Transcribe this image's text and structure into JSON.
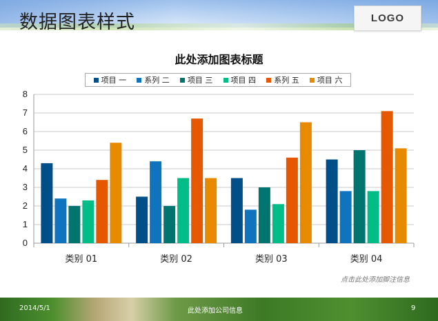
{
  "header": {
    "title": "数据图表样式",
    "logo": "LOGO"
  },
  "footnote": "点击此处添加脚注信息",
  "footer": {
    "date": "2014/5/1",
    "info": "此处添加公司信息",
    "page": "9"
  },
  "colors": [
    "#004f88",
    "#0f73bd",
    "#00746e",
    "#00bd88",
    "#e55800",
    "#e88a00"
  ],
  "chart_data": {
    "type": "bar",
    "title": "此处添加图表标题",
    "categories": [
      "类别 01",
      "类别 02",
      "类别 03",
      "类别 04"
    ],
    "ylim": [
      0,
      8
    ],
    "yticks": [
      0,
      1,
      2,
      3,
      4,
      5,
      6,
      7,
      8
    ],
    "grid": true,
    "legend_position": "top",
    "series": [
      {
        "name": "项目 一",
        "values": [
          4.3,
          2.5,
          3.5,
          4.5
        ]
      },
      {
        "name": "系列 二",
        "values": [
          2.4,
          4.4,
          1.8,
          2.8
        ]
      },
      {
        "name": "项目 三",
        "values": [
          2.0,
          2.0,
          3.0,
          5.0
        ]
      },
      {
        "name": "项目 四",
        "values": [
          2.3,
          3.5,
          2.1,
          2.8
        ]
      },
      {
        "name": "系列 五",
        "values": [
          3.4,
          6.7,
          4.6,
          7.1
        ]
      },
      {
        "name": "项目 六",
        "values": [
          5.4,
          3.5,
          6.5,
          5.1
        ]
      }
    ]
  }
}
